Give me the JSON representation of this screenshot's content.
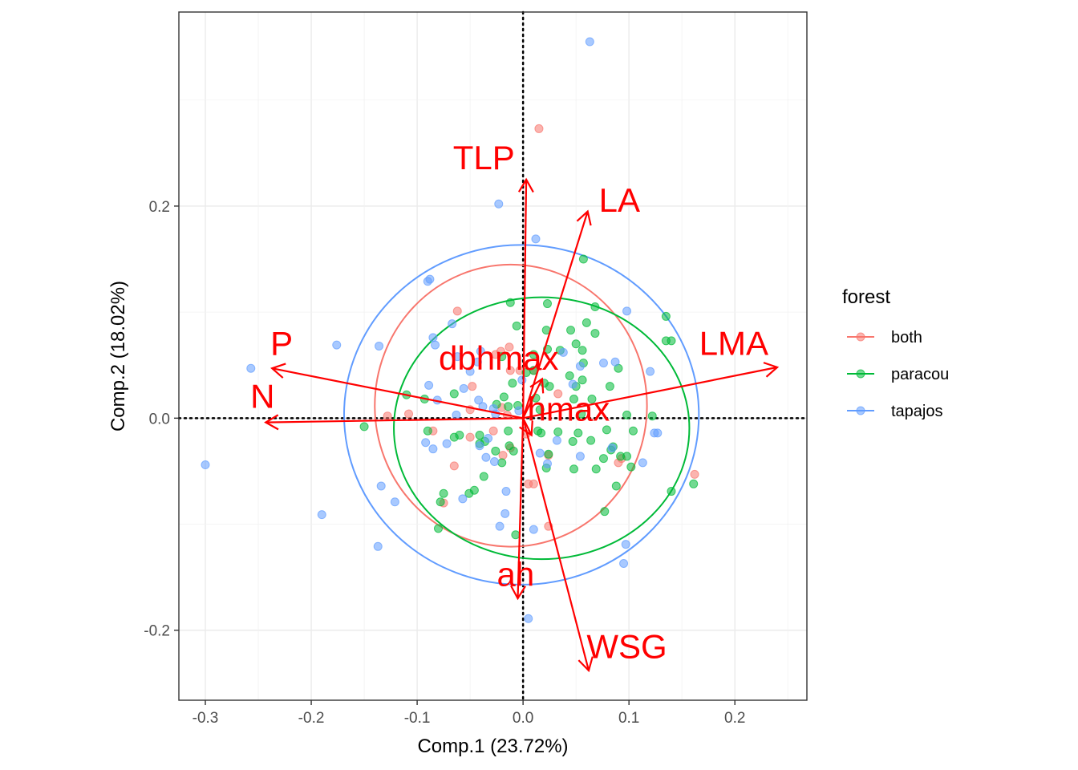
{
  "chart_data": {
    "type": "scatter",
    "title": "",
    "xlabel": "Comp.1 (23.72%)",
    "ylabel": "Comp.2 (18.02%)",
    "xlim": [
      -0.325,
      0.268
    ],
    "ylim": [
      -0.266,
      0.383
    ],
    "x_ticks": [
      -0.3,
      -0.2,
      -0.1,
      0.0,
      0.1,
      0.2
    ],
    "x_tick_labels": [
      "-0.3",
      "-0.2",
      "-0.1",
      "0.0",
      "0.1",
      "0.2"
    ],
    "y_ticks": [
      -0.2,
      0.0,
      0.2
    ],
    "y_tick_labels": [
      "-0.2",
      "0.0",
      "0.2"
    ],
    "grid": true,
    "reference_lines": {
      "x": 0,
      "y": 0,
      "style": "dotted"
    },
    "legend": {
      "title": "forest",
      "position": "right",
      "entries": [
        {
          "name": "both",
          "color": "#F8766D"
        },
        {
          "name": "paracou",
          "color": "#00BA38"
        },
        {
          "name": "tapajos",
          "color": "#619CFF"
        }
      ]
    },
    "series": [
      {
        "name": "both",
        "color": "#F8766D",
        "points": [
          [
            0.015,
            0.273
          ],
          [
            -0.062,
            0.101
          ],
          [
            -0.013,
            0.067
          ],
          [
            -0.021,
            0.063
          ],
          [
            -0.026,
            0.06
          ],
          [
            -0.003,
            0.045
          ],
          [
            -0.012,
            0.045
          ],
          [
            0.01,
            0.045
          ],
          [
            0.033,
            0.023
          ],
          [
            -0.048,
            0.03
          ],
          [
            -0.108,
            0.004
          ],
          [
            -0.128,
            0.002
          ],
          [
            -0.02,
            0.01
          ],
          [
            -0.05,
            0.008
          ],
          [
            -0.015,
            0.003
          ],
          [
            -0.028,
            -0.012
          ],
          [
            -0.05,
            -0.018
          ],
          [
            -0.085,
            -0.012
          ],
          [
            0.003,
            -0.015
          ],
          [
            -0.012,
            -0.028
          ],
          [
            -0.019,
            -0.035
          ],
          [
            -0.065,
            -0.045
          ],
          [
            0.005,
            -0.062
          ],
          [
            0.01,
            -0.062
          ],
          [
            0.024,
            -0.035
          ],
          [
            0.093,
            -0.038
          ],
          [
            0.09,
            -0.042
          ],
          [
            0.162,
            -0.053
          ],
          [
            -0.075,
            -0.08
          ],
          [
            0.024,
            -0.102
          ]
        ]
      },
      {
        "name": "paracou",
        "color": "#00BA38",
        "points": [
          [
            0.057,
            0.15
          ],
          [
            -0.012,
            0.109
          ],
          [
            0.023,
            0.108
          ],
          [
            0.068,
            0.105
          ],
          [
            0.135,
            0.096
          ],
          [
            -0.006,
            0.087
          ],
          [
            0.06,
            0.09
          ],
          [
            0.045,
            0.083
          ],
          [
            0.068,
            0.08
          ],
          [
            0.022,
            0.083
          ],
          [
            0.135,
            0.073
          ],
          [
            0.14,
            0.073
          ],
          [
            0.05,
            0.07
          ],
          [
            0.056,
            0.064
          ],
          [
            -0.02,
            0.058
          ],
          [
            0.023,
            0.065
          ],
          [
            0.035,
            0.064
          ],
          [
            0.01,
            0.06
          ],
          [
            0.057,
            0.052
          ],
          [
            0.09,
            0.047
          ],
          [
            0.003,
            0.043
          ],
          [
            0.01,
            0.045
          ],
          [
            0.044,
            0.04
          ],
          [
            0.056,
            0.036
          ],
          [
            -0.01,
            0.033
          ],
          [
            0.02,
            0.033
          ],
          [
            0.025,
            0.03
          ],
          [
            0.05,
            0.03
          ],
          [
            0.082,
            0.03
          ],
          [
            -0.11,
            0.022
          ],
          [
            -0.065,
            0.023
          ],
          [
            -0.018,
            0.02
          ],
          [
            -0.093,
            0.018
          ],
          [
            0.012,
            0.019
          ],
          [
            0.048,
            0.018
          ],
          [
            0.065,
            0.018
          ],
          [
            -0.025,
            0.013
          ],
          [
            -0.014,
            0.011
          ],
          [
            -0.005,
            0.012
          ],
          [
            0.016,
            0.008
          ],
          [
            0.055,
            0.004
          ],
          [
            0.098,
            0.003
          ],
          [
            0.122,
            0.002
          ],
          [
            -0.15,
            -0.008
          ],
          [
            -0.09,
            -0.012
          ],
          [
            -0.06,
            -0.016
          ],
          [
            -0.065,
            -0.018
          ],
          [
            -0.041,
            -0.016
          ],
          [
            -0.014,
            -0.012
          ],
          [
            0.014,
            -0.012
          ],
          [
            0.017,
            -0.014
          ],
          [
            0.033,
            -0.013
          ],
          [
            0.052,
            -0.014
          ],
          [
            0.079,
            -0.011
          ],
          [
            0.104,
            -0.012
          ],
          [
            -0.041,
            -0.024
          ],
          [
            -0.036,
            -0.022
          ],
          [
            -0.013,
            -0.026
          ],
          [
            0.047,
            -0.022
          ],
          [
            0.064,
            -0.021
          ],
          [
            0.085,
            -0.027
          ],
          [
            -0.026,
            -0.031
          ],
          [
            -0.009,
            -0.031
          ],
          [
            0.024,
            -0.034
          ],
          [
            0.083,
            -0.03
          ],
          [
            0.076,
            -0.038
          ],
          [
            0.092,
            -0.036
          ],
          [
            0.098,
            -0.036
          ],
          [
            -0.02,
            -0.042
          ],
          [
            0.022,
            -0.047
          ],
          [
            0.048,
            -0.048
          ],
          [
            0.069,
            -0.048
          ],
          [
            0.102,
            -0.046
          ],
          [
            -0.037,
            -0.055
          ],
          [
            -0.046,
            -0.068
          ],
          [
            -0.075,
            -0.071
          ],
          [
            0.088,
            -0.064
          ],
          [
            0.14,
            -0.069
          ],
          [
            0.161,
            -0.062
          ],
          [
            -0.051,
            -0.071
          ],
          [
            -0.078,
            -0.079
          ],
          [
            0.077,
            -0.088
          ],
          [
            -0.08,
            -0.104
          ],
          [
            -0.007,
            -0.11
          ]
        ]
      },
      {
        "name": "tapajos",
        "color": "#619CFF",
        "points": [
          [
            0.063,
            0.355
          ],
          [
            -0.023,
            0.202
          ],
          [
            0.012,
            0.169
          ],
          [
            0.098,
            0.101
          ],
          [
            -0.088,
            0.131
          ],
          [
            -0.09,
            0.129
          ],
          [
            -0.067,
            0.089
          ],
          [
            -0.085,
            0.076
          ],
          [
            -0.176,
            0.069
          ],
          [
            -0.136,
            0.068
          ],
          [
            -0.083,
            0.069
          ],
          [
            -0.04,
            0.063
          ],
          [
            -0.062,
            0.058
          ],
          [
            -0.043,
            0.053
          ],
          [
            -0.257,
            0.047
          ],
          [
            0.038,
            0.062
          ],
          [
            0.087,
            0.053
          ],
          [
            0.076,
            0.052
          ],
          [
            0.054,
            0.049
          ],
          [
            0.12,
            0.044
          ],
          [
            -0.05,
            0.044
          ],
          [
            -0.001,
            0.036
          ],
          [
            0.047,
            0.032
          ],
          [
            -0.089,
            0.031
          ],
          [
            -0.056,
            0.028
          ],
          [
            -0.081,
            0.017
          ],
          [
            -0.042,
            0.017
          ],
          [
            -0.038,
            0.011
          ],
          [
            -0.028,
            0.009
          ],
          [
            -0.004,
            0.007
          ],
          [
            -0.026,
            0.004
          ],
          [
            -0.063,
            0.003
          ],
          [
            0.124,
            -0.014
          ],
          [
            0.127,
            -0.014
          ],
          [
            -0.092,
            -0.023
          ],
          [
            -0.072,
            -0.024
          ],
          [
            -0.033,
            -0.019
          ],
          [
            -0.041,
            -0.026
          ],
          [
            0.032,
            -0.021
          ],
          [
            -0.085,
            -0.029
          ],
          [
            0.084,
            -0.028
          ],
          [
            -0.035,
            -0.037
          ],
          [
            0.016,
            -0.033
          ],
          [
            0.054,
            -0.036
          ],
          [
            -0.3,
            -0.044
          ],
          [
            -0.027,
            -0.041
          ],
          [
            0.023,
            -0.043
          ],
          [
            0.113,
            -0.042
          ],
          [
            -0.134,
            -0.064
          ],
          [
            -0.121,
            -0.079
          ],
          [
            -0.057,
            -0.076
          ],
          [
            -0.016,
            -0.069
          ],
          [
            -0.19,
            -0.091
          ],
          [
            -0.017,
            -0.09
          ],
          [
            -0.022,
            -0.102
          ],
          [
            0.01,
            -0.105
          ],
          [
            -0.137,
            -0.121
          ],
          [
            0.097,
            -0.119
          ],
          [
            0.095,
            -0.137
          ],
          [
            0.005,
            -0.189
          ]
        ]
      }
    ],
    "ellipses": [
      {
        "series": "both",
        "color": "#F8766D",
        "cx": -0.0115,
        "cy": 0.0118,
        "rx": 0.1285,
        "ry": 0.133
      },
      {
        "series": "paracou",
        "color": "#00BA38",
        "cx": 0.0175,
        "cy": -0.0095,
        "rx": 0.1395,
        "ry": 0.1235
      },
      {
        "series": "tapajos",
        "color": "#619CFF",
        "cx": -0.0015,
        "cy": 0.0032,
        "rx": 0.1675,
        "ry": 0.1602
      }
    ],
    "loadings": {
      "color": "#FF0000",
      "arrows": [
        {
          "name": "TLP",
          "x": 0.003,
          "y": 0.225,
          "label_x": -0.037,
          "label_y": 0.243
        },
        {
          "name": "LA",
          "x": 0.061,
          "y": 0.195,
          "label_x": 0.091,
          "label_y": 0.203
        },
        {
          "name": "LMA",
          "x": 0.24,
          "y": 0.048,
          "label_x": 0.199,
          "label_y": 0.068
        },
        {
          "name": "P",
          "x": -0.237,
          "y": 0.047,
          "label_x": -0.228,
          "label_y": 0.068
        },
        {
          "name": "N",
          "x": -0.243,
          "y": -0.004,
          "label_x": -0.246,
          "label_y": 0.018
        },
        {
          "name": "dbhmax",
          "x": 0.018,
          "y": 0.037,
          "label_x": -0.023,
          "label_y": 0.054
        },
        {
          "name": "hmax",
          "x": 0.008,
          "y": -0.016,
          "label_x": 0.043,
          "label_y": 0.006
        },
        {
          "name": "ah",
          "x": -0.005,
          "y": -0.17,
          "label_x": -0.007,
          "label_y": -0.15
        },
        {
          "name": "WSG",
          "x": 0.062,
          "y": -0.238,
          "label_x": 0.098,
          "label_y": -0.218
        }
      ]
    }
  }
}
